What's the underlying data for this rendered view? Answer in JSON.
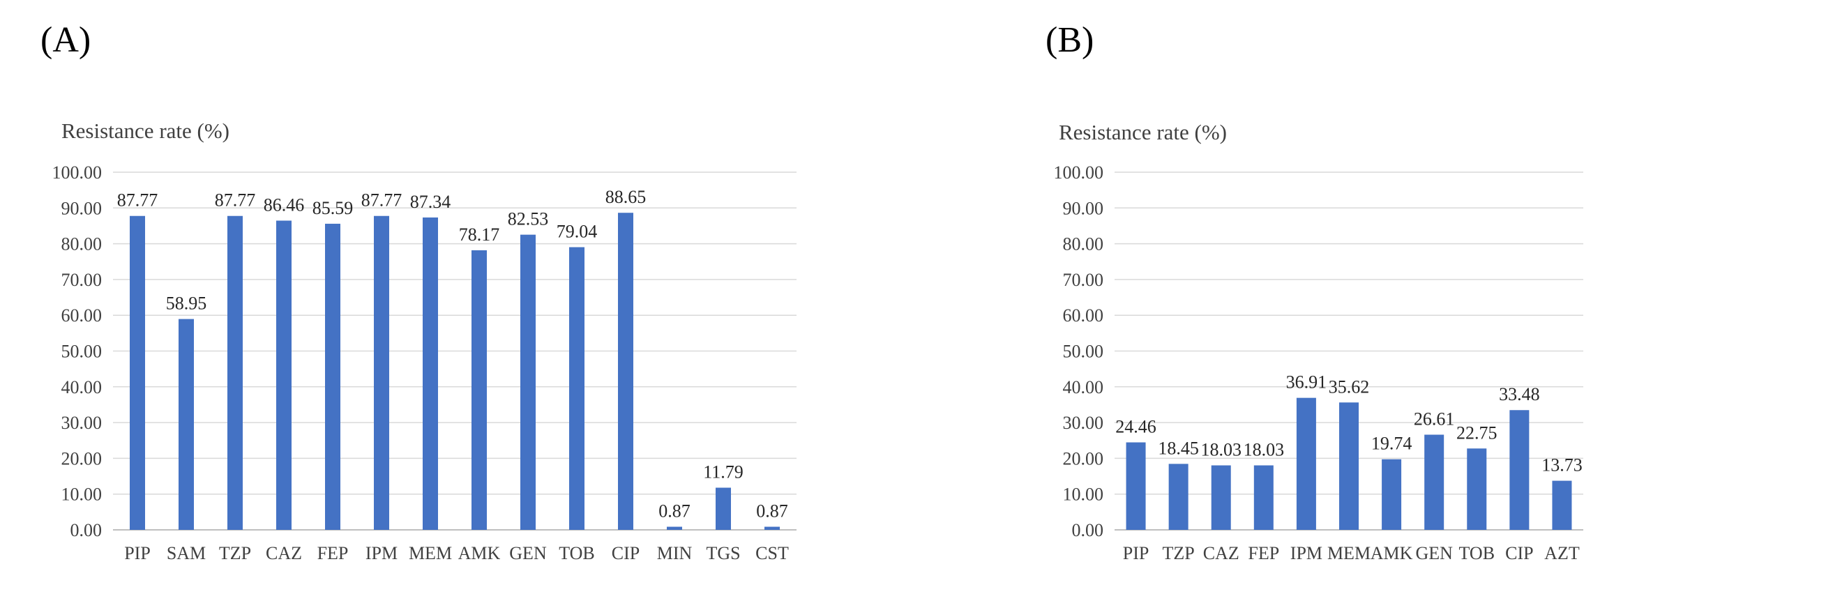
{
  "panels": [
    {
      "label": "(A)"
    },
    {
      "label": "(B)"
    }
  ],
  "chart_data": [
    {
      "type": "bar",
      "ylabel": "Resistance rate (%)",
      "ylim": [
        0,
        100
      ],
      "yticks": [
        "0.00",
        "10.00",
        "20.00",
        "30.00",
        "40.00",
        "50.00",
        "60.00",
        "70.00",
        "80.00",
        "90.00",
        "100.00"
      ],
      "categories": [
        "PIP",
        "SAM",
        "TZP",
        "CAZ",
        "FEP",
        "IPM",
        "MEM",
        "AMK",
        "GEN",
        "TOB",
        "CIP",
        "MIN",
        "TGS",
        "CST"
      ],
      "values": [
        87.77,
        58.95,
        87.77,
        86.46,
        85.59,
        87.77,
        87.34,
        78.17,
        82.53,
        79.04,
        88.65,
        0.87,
        11.79,
        0.87
      ],
      "value_labels": [
        "87.77",
        "58.95",
        "87.77",
        "86.46",
        "85.59",
        "87.77",
        "87.34",
        "78.17",
        "82.53",
        "79.04",
        "88.65",
        "0.87",
        "11.79",
        "0.87"
      ],
      "bar_color": "#4472c4",
      "grid": true
    },
    {
      "type": "bar",
      "ylabel": "Resistance rate (%)",
      "ylim": [
        0,
        100
      ],
      "yticks": [
        "0.00",
        "10.00",
        "20.00",
        "30.00",
        "40.00",
        "50.00",
        "60.00",
        "70.00",
        "80.00",
        "90.00",
        "100.00"
      ],
      "categories": [
        "PIP",
        "TZP",
        "CAZ",
        "FEP",
        "IPM",
        "MEM",
        "AMK",
        "GEN",
        "TOB",
        "CIP",
        "AZT"
      ],
      "values": [
        24.46,
        18.45,
        18.03,
        18.03,
        36.91,
        35.62,
        19.74,
        26.61,
        22.75,
        33.48,
        13.73
      ],
      "value_labels": [
        "24.46",
        "18.45",
        "18.03",
        "18.03",
        "36.91",
        "35.62",
        "19.74",
        "26.61",
        "22.75",
        "33.48",
        "13.73"
      ],
      "bar_color": "#4472c4",
      "grid": true
    }
  ]
}
